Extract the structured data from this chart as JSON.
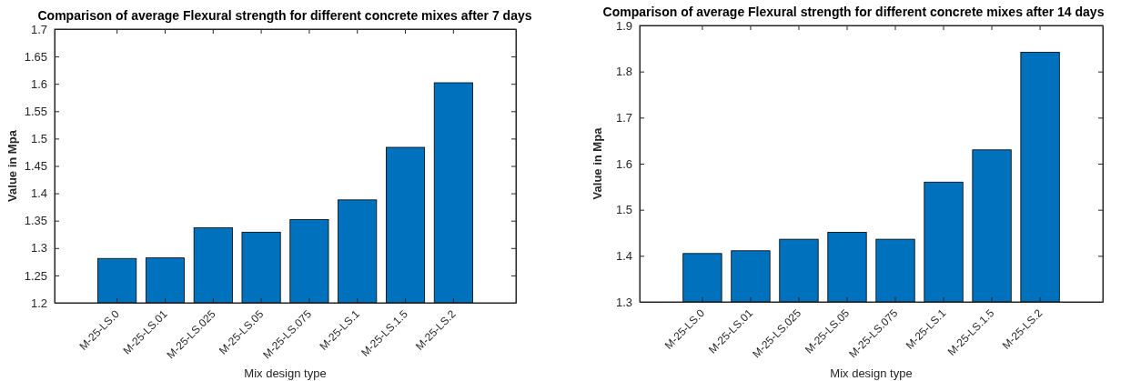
{
  "chart_data": [
    {
      "type": "bar",
      "title": "Comparison of average Flexural strength for different concrete mixes after 7 days",
      "xlabel": "Mix design type",
      "ylabel": "Value in Mpa",
      "categories": [
        "M-25-LS.0",
        "M-25-LS.01",
        "M-25-LS.025",
        "M-25-LS.05",
        "M-25-LS.075",
        "M-25-LS.1",
        "M-25-LS.1.5",
        "M-25-LS.2"
      ],
      "values": [
        1.281,
        1.282,
        1.337,
        1.329,
        1.352,
        1.388,
        1.484,
        1.602
      ],
      "color": "#0072bd",
      "ylim": [
        1.2,
        1.7
      ],
      "yticks": [
        1.2,
        1.25,
        1.3,
        1.35,
        1.4,
        1.45,
        1.5,
        1.55,
        1.6,
        1.65,
        1.7
      ],
      "grid": false
    },
    {
      "type": "bar",
      "title": "Comparison of average Flexural strength for different concrete mixes after 14 days",
      "xlabel": "Mix design type",
      "ylabel": "Value in Mpa",
      "categories": [
        "M-25-LS.0",
        "M-25-LS.01",
        "M-25-LS.025",
        "M-25-LS.05",
        "M-25-LS.075",
        "M-25-LS.1",
        "M-25-LS.1.5",
        "M-25-LS.2"
      ],
      "values": [
        1.405,
        1.411,
        1.436,
        1.451,
        1.436,
        1.56,
        1.63,
        1.842
      ],
      "color": "#0072bd",
      "ylim": [
        1.3,
        1.9
      ],
      "yticks": [
        1.3,
        1.4,
        1.5,
        1.6,
        1.7,
        1.8,
        1.9
      ],
      "grid": false
    }
  ]
}
